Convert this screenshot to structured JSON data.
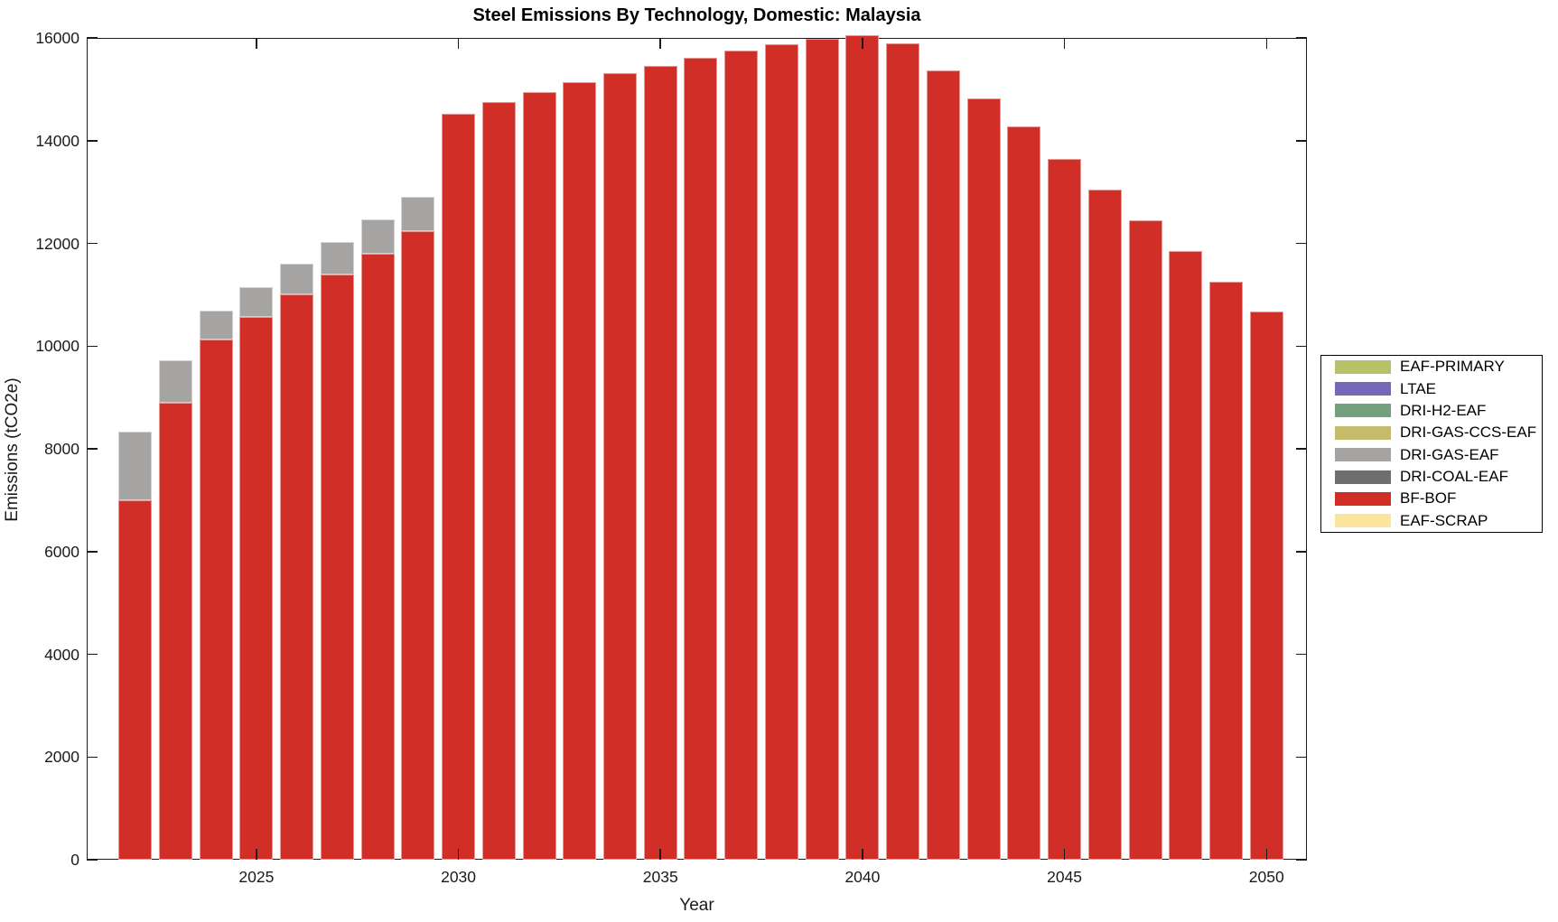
{
  "title": "Steel Emissions By Technology, Domestic: Malaysia",
  "chart_data": {
    "type": "bar",
    "stacked": true,
    "stack_order": "reverse-of-series-list",
    "title": "Steel Emissions By Technology, Domestic: Malaysia",
    "xlabel": "Year",
    "ylabel": "Emissions (tCO2e)",
    "ylim": [
      0,
      16000
    ],
    "xlim": [
      2020.8,
      2051
    ],
    "grid": false,
    "y_ticks": [
      0,
      2000,
      4000,
      6000,
      8000,
      10000,
      12000,
      14000,
      16000
    ],
    "x_ticks": [
      2025,
      2030,
      2035,
      2040,
      2045,
      2050
    ],
    "legend_position": "right-outside",
    "categories": [
      2022,
      2023,
      2024,
      2025,
      2026,
      2027,
      2028,
      2029,
      2030,
      2031,
      2032,
      2033,
      2034,
      2035,
      2036,
      2037,
      2038,
      2039,
      2040,
      2041,
      2042,
      2043,
      2044,
      2045,
      2046,
      2047,
      2048,
      2049,
      2050
    ],
    "series": [
      {
        "name": "EAF-PRIMARY",
        "color": "#b7c168",
        "values": [
          0,
          0,
          0,
          0,
          0,
          0,
          0,
          0,
          0,
          0,
          0,
          0,
          0,
          0,
          0,
          0,
          0,
          0,
          0,
          0,
          0,
          0,
          0,
          0,
          0,
          0,
          0,
          0,
          0
        ]
      },
      {
        "name": "LTAE",
        "color": "#7568bb",
        "values": [
          0,
          0,
          0,
          0,
          0,
          0,
          0,
          0,
          0,
          0,
          0,
          0,
          0,
          0,
          0,
          0,
          0,
          0,
          0,
          0,
          0,
          0,
          0,
          0,
          0,
          0,
          0,
          0,
          0
        ]
      },
      {
        "name": "DRI-H2-EAF",
        "color": "#75a07f",
        "values": [
          0,
          0,
          0,
          0,
          0,
          0,
          0,
          0,
          0,
          0,
          0,
          0,
          0,
          0,
          0,
          0,
          0,
          0,
          0,
          0,
          0,
          0,
          0,
          0,
          0,
          0,
          0,
          0,
          0
        ]
      },
      {
        "name": "DRI-GAS-CCS-EAF",
        "color": "#c6ba6b",
        "values": [
          0,
          0,
          0,
          0,
          0,
          0,
          0,
          0,
          0,
          0,
          0,
          0,
          0,
          0,
          0,
          0,
          0,
          0,
          0,
          0,
          0,
          0,
          0,
          0,
          0,
          0,
          0,
          0,
          0
        ]
      },
      {
        "name": "DRI-GAS-EAF",
        "color": "#a5a4a3",
        "values": [
          1330,
          820,
          570,
          570,
          600,
          640,
          670,
          680,
          0,
          0,
          0,
          0,
          0,
          0,
          0,
          0,
          0,
          0,
          0,
          0,
          0,
          0,
          0,
          0,
          0,
          0,
          0,
          0,
          0
        ]
      },
      {
        "name": "DRI-COAL-EAF",
        "color": "#6e6e6e",
        "values": [
          0,
          0,
          0,
          0,
          0,
          0,
          0,
          0,
          0,
          0,
          0,
          0,
          0,
          0,
          0,
          0,
          0,
          0,
          0,
          0,
          0,
          0,
          0,
          0,
          0,
          0,
          0,
          0,
          0
        ]
      },
      {
        "name": "BF-BOF",
        "color": "#d02e27",
        "values": [
          7000,
          8900,
          10120,
          10570,
          11000,
          11390,
          11800,
          12230,
          14520,
          14750,
          14940,
          15130,
          15310,
          15460,
          15610,
          15750,
          15870,
          15980,
          16060,
          15890,
          15370,
          14830,
          14280,
          13650,
          13050,
          12440,
          11850,
          11250,
          10680
        ]
      },
      {
        "name": "EAF-SCRAP",
        "color": "#fbe49c",
        "values": [
          0,
          0,
          0,
          0,
          0,
          0,
          0,
          0,
          0,
          0,
          0,
          0,
          0,
          0,
          0,
          0,
          0,
          0,
          0,
          0,
          0,
          0,
          0,
          0,
          0,
          0,
          0,
          0,
          0
        ]
      }
    ]
  }
}
